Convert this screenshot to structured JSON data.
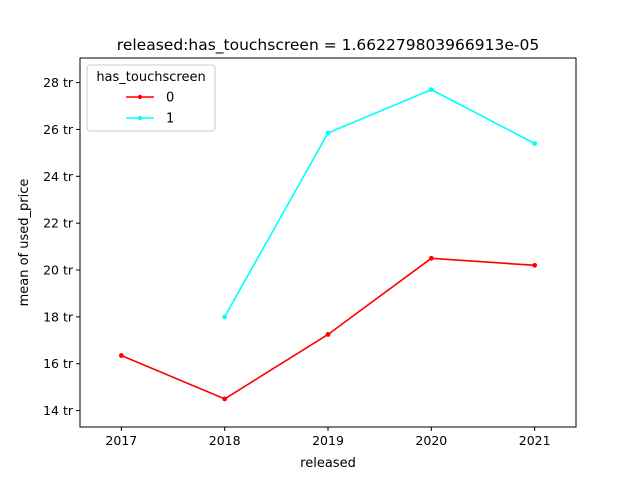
{
  "chart_data": {
    "type": "line",
    "title": "released:has_touchscreen = 1.662279803966913e-05",
    "xlabel": "released",
    "ylabel": "mean of used_price",
    "x": [
      2017,
      2018,
      2019,
      2020,
      2021
    ],
    "xlim": [
      2016.6,
      2021.4
    ],
    "ylim": [
      13.3,
      29.05
    ],
    "yticks": [
      14,
      16,
      18,
      20,
      22,
      24,
      26,
      28
    ],
    "ytick_labels": [
      "14 tr",
      "16 tr",
      "18 tr",
      "20 tr",
      "22 tr",
      "24 tr",
      "26 tr",
      "28 tr"
    ],
    "xtick_labels": [
      "2017",
      "2018",
      "2019",
      "2020",
      "2021"
    ],
    "legend": {
      "title": "has_touchscreen",
      "placement": "top-left"
    },
    "grid": false,
    "series": [
      {
        "name": "0",
        "color": "#ff0000",
        "x": [
          2017,
          2018,
          2019,
          2020,
          2021
        ],
        "values": [
          16.35,
          14.5,
          17.25,
          20.5,
          20.2
        ]
      },
      {
        "name": "1",
        "color": "#00ffff",
        "x": [
          2018,
          2019,
          2020,
          2021
        ],
        "values": [
          18.0,
          25.85,
          27.7,
          25.4
        ]
      }
    ]
  }
}
